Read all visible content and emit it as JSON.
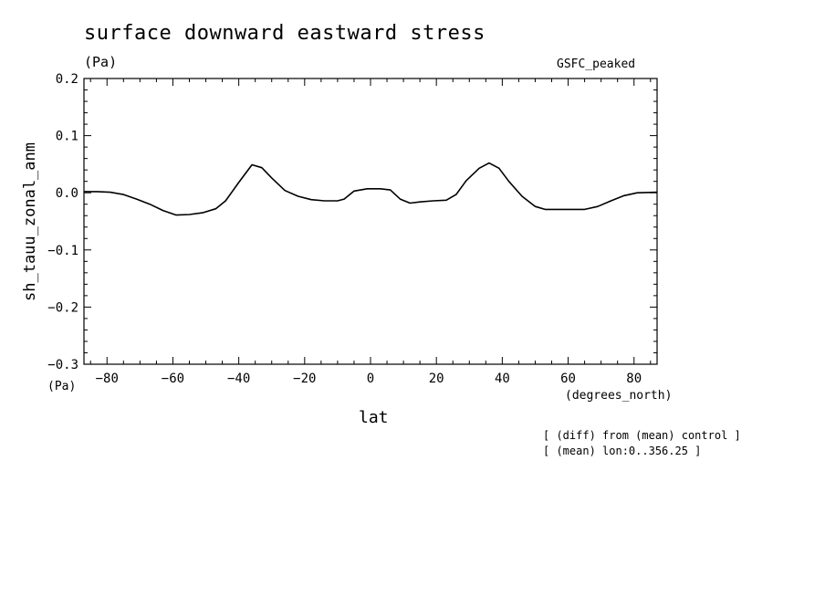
{
  "chart_data": {
    "type": "line",
    "title": "surface downward eastward stress",
    "units_top": "(Pa)",
    "dataset_label": "GSFC_peaked",
    "ylabel": "sh_tauu_zonal_anm",
    "ylabel_units": "(Pa)",
    "xlabel": "lat",
    "xlabel_units": "(degrees_north)",
    "notes": [
      "[ (diff) from (mean) control ]",
      "[ (mean) lon:0..356.25 ]"
    ],
    "xlim": [
      -87,
      87
    ],
    "ylim": [
      -0.3,
      0.2
    ],
    "xticks": [
      -80,
      -60,
      -40,
      -20,
      0,
      20,
      40,
      60,
      80
    ],
    "xtick_labels": [
      "−80",
      "−60",
      "−40",
      "−20",
      "0",
      "20",
      "40",
      "60",
      "80"
    ],
    "yticks": [
      0.2,
      0.1,
      0.0,
      -0.1,
      -0.2,
      -0.3
    ],
    "ytick_labels": [
      "0.2",
      "0.1",
      "0.0",
      "−0.1",
      "−0.2",
      "−0.3"
    ],
    "grid": false,
    "series": [
      {
        "x": [
          -87,
          -83,
          -79,
          -75,
          -71,
          -67,
          -63,
          -59,
          -55,
          -51,
          -47,
          -44,
          -40,
          -36,
          -33,
          -30,
          -26,
          -22,
          -18,
          -14,
          -10,
          -8,
          -5,
          -1,
          3,
          6,
          9,
          12,
          15,
          19,
          23,
          26,
          29,
          33,
          36,
          39,
          42,
          46,
          50,
          53,
          57,
          61,
          65,
          69,
          73,
          77,
          81,
          87
        ],
        "y": [
          0.002,
          0.002,
          0.001,
          -0.003,
          -0.011,
          -0.02,
          -0.031,
          -0.039,
          -0.038,
          -0.035,
          -0.028,
          -0.014,
          0.018,
          0.049,
          0.044,
          0.026,
          0.004,
          -0.006,
          -0.012,
          -0.014,
          -0.014,
          -0.011,
          0.003,
          0.007,
          0.007,
          0.005,
          -0.011,
          -0.018,
          -0.016,
          -0.014,
          -0.013,
          -0.003,
          0.021,
          0.043,
          0.052,
          0.043,
          0.02,
          -0.006,
          -0.024,
          -0.029,
          -0.029,
          -0.029,
          -0.029,
          -0.024,
          -0.014,
          -0.005,
          0.0,
          0.001
        ]
      }
    ],
    "colors": {
      "line": "#000000",
      "axes": "#000000",
      "background": "#ffffff"
    }
  }
}
